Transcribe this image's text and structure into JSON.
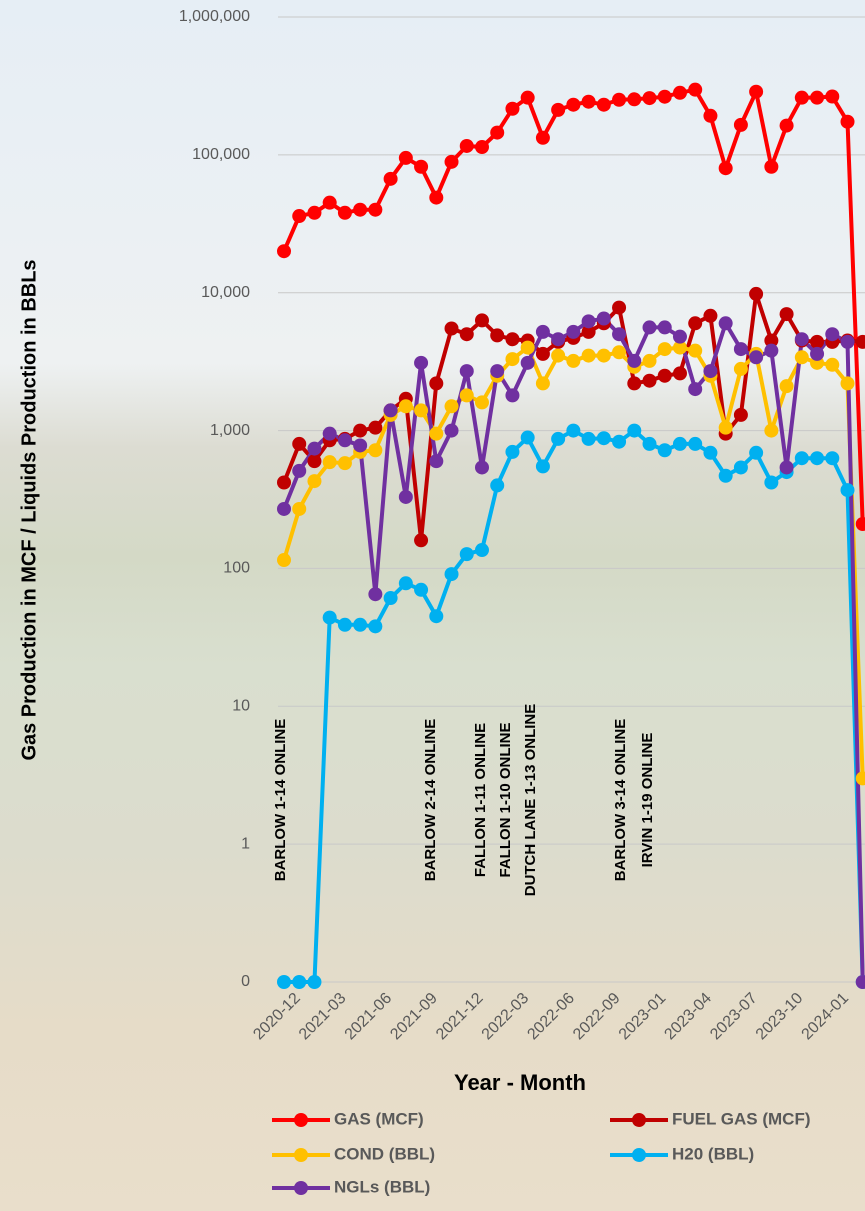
{
  "chart_data": {
    "type": "line",
    "y_label": "Gas Production in MCF / Liquids Production in BBLs",
    "x_label": "Year -  Month",
    "categories": [
      "2020-12",
      null,
      null,
      "2021-03",
      null,
      null,
      "2021-06",
      null,
      null,
      "2021-09",
      null,
      null,
      "2021-12",
      null,
      null,
      "2022-03",
      null,
      null,
      "2022-06",
      null,
      null,
      "2022-09",
      null,
      null,
      "2023-01",
      null,
      null,
      "2023-04",
      null,
      null,
      "2023-07",
      null,
      null,
      "2023-10",
      null,
      null,
      "2024-01",
      null,
      null
    ],
    "series": [
      {
        "name": "GAS (MCF)",
        "color": "#ff0000",
        "values": [
          20000,
          36000,
          38000,
          45000,
          38000,
          40000,
          40000,
          67000,
          95000,
          82000,
          49000,
          89000,
          116000,
          114000,
          145000,
          216000,
          260000,
          133000,
          212000,
          231000,
          243000,
          231000,
          251000,
          253000,
          258000,
          264000,
          282000,
          297000,
          192000,
          80000,
          165000,
          287000,
          82000,
          163000,
          260000,
          260000,
          265000,
          174000,
          210
        ]
      },
      {
        "name": "FUEL GAS (MCF)",
        "color": "#c00000",
        "values": [
          420,
          800,
          600,
          850,
          870,
          1000,
          1050,
          1400,
          1700,
          160,
          2200,
          5500,
          5000,
          6300,
          4900,
          4600,
          4500,
          3600,
          4400,
          4700,
          5200,
          6000,
          7800,
          2200,
          2300,
          2500,
          2600,
          6000,
          6800,
          950,
          1300,
          9800,
          4500,
          7000,
          4500,
          4400,
          4400,
          4500,
          4400
        ]
      },
      {
        "name": "COND (BBL)",
        "color": "#ffc000",
        "values": [
          115,
          270,
          430,
          590,
          580,
          700,
          720,
          1300,
          1500,
          1400,
          950,
          1500,
          1800,
          1600,
          2500,
          3300,
          4000,
          2200,
          3500,
          3200,
          3500,
          3500,
          3700,
          2900,
          3200,
          3900,
          4000,
          3800,
          2500,
          1050,
          2800,
          3600,
          1000,
          2100,
          3400,
          3100,
          3000,
          2200,
          3
        ]
      },
      {
        "name": "H20 (BBL)",
        "color": "#00b0f0",
        "values": [
          0.1,
          0.1,
          0.1,
          44,
          39,
          39,
          38,
          61,
          78,
          70,
          45,
          91,
          127,
          136,
          400,
          700,
          890,
          550,
          870,
          1000,
          870,
          880,
          830,
          1000,
          800,
          720,
          800,
          800,
          690,
          470,
          540,
          690,
          420,
          500,
          630,
          630,
          630,
          370,
          0.1
        ]
      },
      {
        "name": "NGLs (BBL)",
        "color": "#7030a0",
        "values": [
          270,
          510,
          740,
          950,
          850,
          780,
          65,
          1400,
          330,
          3100,
          600,
          1000,
          2700,
          540,
          2700,
          1800,
          3100,
          5200,
          4600,
          5200,
          6200,
          6500,
          5000,
          3200,
          5600,
          5600,
          4800,
          2000,
          2700,
          6000,
          3900,
          3400,
          3800,
          540,
          4600,
          3600,
          5000,
          4400,
          0.1
        ]
      }
    ],
    "ylim": [
      0.1,
      1000000
    ],
    "log_y": true,
    "grid": true,
    "legend": "bottom",
    "yticks": [
      {
        "value": 0.1,
        "label": "0"
      },
      1,
      10,
      {
        "value": 100,
        "label": "100"
      },
      {
        "value": 1000,
        "label": "1,000"
      },
      {
        "value": 10000,
        "label": "10,000"
      },
      {
        "value": 100000,
        "label": "100,000"
      },
      {
        "value": 1000000,
        "label": "1,000,000"
      }
    ],
    "annotations": [
      "BARLOW 1-14 ONLINE",
      "BARLOW 2-14 ONLINE",
      "FALLON 1-11 ONLINE",
      "FALLON 1-10 ONLINE",
      "DUTCH LANE 1-13 ONLINE",
      "BARLOW 3-14 ONLINE",
      "IRVIN 1-19 ONLINE"
    ]
  }
}
